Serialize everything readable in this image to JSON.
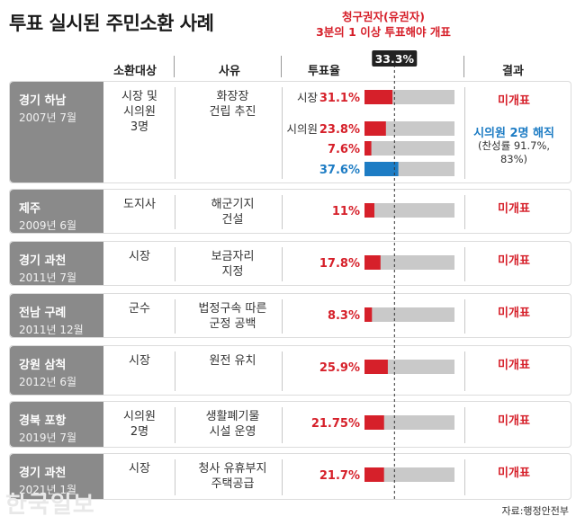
{
  "title": "투표 실시된 주민소환 사례",
  "threshold_note": [
    "청구권자(유권자)",
    "3분의 1 이상 투표해야 개표"
  ],
  "headers": {
    "target": "소환대상",
    "reason": "사유",
    "turnout": "투표율",
    "result": "결과"
  },
  "source": "자료:행정안전부",
  "logo": "한국일보",
  "colors": {
    "bar_red": "#d6202a",
    "bar_blue": "#1d7cc4",
    "track": "#c9c9c9",
    "side": "#8a8a8a",
    "threshold_label_bg": "#222222"
  },
  "chart_data": {
    "type": "bar",
    "orientation": "horizontal",
    "xlim": [
      0,
      100
    ],
    "threshold": {
      "value": 33.3,
      "label": "33.3%"
    },
    "cases": [
      {
        "region": "경기 하남",
        "date": "2007년 7월",
        "target": [
          "시장 및",
          "시의원",
          "3명"
        ],
        "reason": [
          "화장장",
          "건립 추진"
        ],
        "bars": [
          {
            "label": "시장",
            "value": 31.1,
            "text": "31.1%",
            "color": "red"
          },
          {
            "label": "시의원",
            "value": 23.8,
            "text": "23.8%",
            "color": "red"
          },
          {
            "label": "",
            "value": 7.6,
            "text": "7.6%",
            "color": "red"
          },
          {
            "label": "",
            "value": 37.6,
            "text": "37.6%",
            "color": "blue"
          }
        ],
        "result": "미개표",
        "result2": "시의원 2명 해직",
        "result2_sub": [
          "(찬성률 91.7%,",
          "83%)"
        ]
      },
      {
        "region": "제주",
        "date": "2009년 6월",
        "target": [
          "도지사"
        ],
        "reason": [
          "해군기지",
          "건설"
        ],
        "bars": [
          {
            "label": "",
            "value": 11,
            "text": "11%",
            "color": "red"
          }
        ],
        "result": "미개표"
      },
      {
        "region": "경기 과천",
        "date": "2011년 7월",
        "target": [
          "시장"
        ],
        "reason": [
          "보금자리",
          "지정"
        ],
        "bars": [
          {
            "label": "",
            "value": 17.8,
            "text": "17.8%",
            "color": "red"
          }
        ],
        "result": "미개표"
      },
      {
        "region": "전남 구례",
        "date": "2011년 12월",
        "target": [
          "군수"
        ],
        "reason": [
          "법정구속 따른",
          "군정 공백"
        ],
        "bars": [
          {
            "label": "",
            "value": 8.3,
            "text": "8.3%",
            "color": "red"
          }
        ],
        "result": "미개표"
      },
      {
        "region": "강원 삼척",
        "date": "2012년 6월",
        "target": [
          "시장"
        ],
        "reason": [
          "원전 유치"
        ],
        "bars": [
          {
            "label": "",
            "value": 25.9,
            "text": "25.9%",
            "color": "red"
          }
        ],
        "result": "미개표"
      },
      {
        "region": "경북 포항",
        "date": "2019년 7월",
        "target": [
          "시의원",
          "2명"
        ],
        "reason": [
          "생활폐기물",
          "시설 운영"
        ],
        "bars": [
          {
            "label": "",
            "value": 21.75,
            "text": "21.75%",
            "color": "red"
          }
        ],
        "result": "미개표"
      },
      {
        "region": "경기 과천",
        "date": "2021년 1월",
        "target": [
          "시장"
        ],
        "reason": [
          "청사 유휴부지",
          "주택공급"
        ],
        "bars": [
          {
            "label": "",
            "value": 21.7,
            "text": "21.7%",
            "color": "red"
          }
        ],
        "result": "미개표"
      }
    ]
  }
}
